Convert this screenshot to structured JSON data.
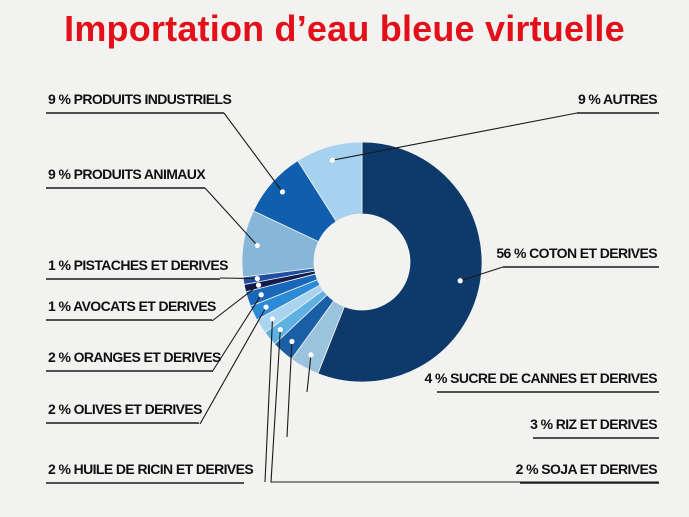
{
  "title": "Importation d’eau bleue virtuelle",
  "colors": {
    "title": "#e3101a",
    "leader": "#1a1a1a",
    "dot": "#ffffff"
  },
  "chart_data": {
    "type": "pie",
    "variant": "donut",
    "title": "Importation d’eau bleue virtuelle",
    "legend": "none",
    "slices": [
      {
        "label": "56 % COTON ET DERIVES",
        "category": "COTON ET DERIVES",
        "value": 56,
        "color": "#0e3a6b"
      },
      {
        "label": "4 % SUCRE DE CANNES ET DERIVES",
        "category": "SUCRE DE CANNES ET DERIVES",
        "value": 4,
        "color": "#9cc3dd"
      },
      {
        "label": "3 % RIZ ET DERIVES",
        "category": "RIZ ET DERIVES",
        "value": 3,
        "color": "#1a5fa6"
      },
      {
        "label": "2 % SOJA ET DERIVES",
        "category": "SOJA ET DERIVES",
        "value": 2,
        "color": "#5fb1e2"
      },
      {
        "label": "2 % HUILE DE RICIN ET DERIVES",
        "category": "HUILE DE RICIN ET DERIVES",
        "value": 2,
        "color": "#a8d4ef"
      },
      {
        "label": "2 % OLIVES ET DERIVES",
        "category": "OLIVES ET DERIVES",
        "value": 2,
        "color": "#2b8bd6"
      },
      {
        "label": "2 % ORANGES ET DERIVES",
        "category": "ORANGES ET DERIVES",
        "value": 2,
        "color": "#1967b9"
      },
      {
        "label": "1 % AVOCATS ET DERIVES",
        "category": "AVOCATS ET DERIVES",
        "value": 1,
        "color": "#141c4e"
      },
      {
        "label": "1 % PISTACHES ET DERIVES",
        "category": "PISTACHES ET DERIVES",
        "value": 1,
        "color": "#1f4fa2"
      },
      {
        "label": "9 % PRODUITS ANIMAUX",
        "category": "PRODUITS ANIMAUX",
        "value": 9,
        "color": "#86b6d8"
      },
      {
        "label": "9 % PRODUITS INDUSTRIELS",
        "category": "PRODUITS INDUSTRIELS",
        "value": 9,
        "color": "#0f5fae"
      },
      {
        "label": "9 % AUTRES",
        "category": "AUTRES",
        "value": 9,
        "color": "#a6d2ef"
      }
    ]
  }
}
